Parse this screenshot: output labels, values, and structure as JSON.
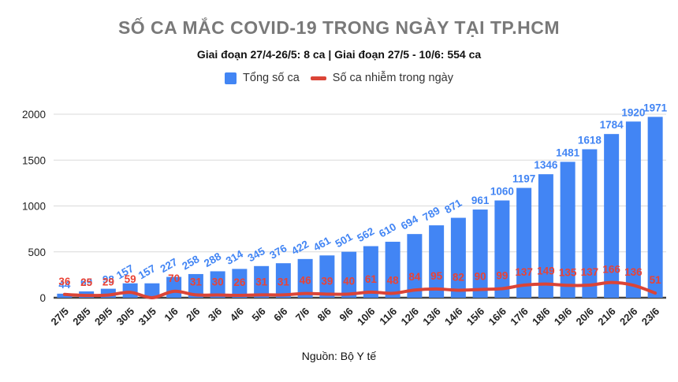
{
  "title": "SỐ CA MẮC COVID-19 TRONG NGÀY TẠI TP.HCM",
  "subtitle": "Giai đoạn 27/4-26/5: 8 ca  | Giai đoạn 27/5 - 10/6: 554 ca",
  "source": "Nguồn: Bộ Y tế",
  "legend": {
    "total": {
      "label": "Tổng số ca",
      "color": "#4285f4"
    },
    "daily": {
      "label": "Số ca nhiễm trong ngày",
      "color": "#db4437"
    }
  },
  "colors": {
    "bar": "#4285f4",
    "bar_label": "#4285f4",
    "line": "#db4437",
    "line_label": "#ea4335",
    "grid": "#d9d9d9",
    "axis": "#424242",
    "tick_text": "#222222",
    "title_text": "#797979"
  },
  "chart_data": {
    "type": "bar",
    "title": "SỐ CA MẮC COVID-19 TRONG NGÀY TẠI TP.HCM",
    "xlabel": "",
    "ylabel": "",
    "ylim": [
      0,
      2000
    ],
    "yticks": [
      0,
      500,
      1000,
      1500,
      2000
    ],
    "grid": true,
    "legend_position": "top",
    "categories": [
      "27/5",
      "28/5",
      "29/5",
      "30/5",
      "31/5",
      "1/6",
      "2/6",
      "3/6",
      "4/6",
      "5/6",
      "6/6",
      "7/6",
      "8/6",
      "9/6",
      "10/6",
      "11/6",
      "12/6",
      "13/6",
      "14/6",
      "15/6",
      "16/6",
      "17/6",
      "18/6",
      "19/6",
      "20/6",
      "21/6",
      "22/6",
      "23/6"
    ],
    "series": [
      {
        "name": "Tổng số ca",
        "type": "bar",
        "color": "#4285f4",
        "values": [
          44,
          69,
          98,
          157,
          157,
          227,
          258,
          288,
          314,
          345,
          376,
          422,
          461,
          501,
          562,
          610,
          694,
          789,
          871,
          961,
          1060,
          1197,
          1346,
          1481,
          1618,
          1784,
          1920,
          1971
        ],
        "labels": [
          "44",
          "69",
          "98",
          "157",
          "157",
          "227",
          "258",
          "288",
          "314",
          "345",
          "376",
          "422",
          "461",
          "501",
          "562",
          "610",
          "694",
          "789",
          "871",
          "961",
          "1060",
          "1197",
          "1346",
          "1481",
          "1618",
          "1784",
          "1920",
          "1971"
        ]
      },
      {
        "name": "Số ca nhiễm trong ngày",
        "type": "line",
        "color": "#db4437",
        "values": [
          36,
          25,
          29,
          59,
          0,
          70,
          31,
          30,
          26,
          31,
          31,
          46,
          39,
          40,
          61,
          48,
          84,
          95,
          82,
          90,
          99,
          137,
          149,
          135,
          137,
          166,
          136,
          51
        ],
        "labels": [
          "36",
          "25",
          "29",
          "59",
          "",
          "70",
          "31",
          "30",
          "26",
          "31",
          "31",
          "46",
          "39",
          "40",
          "61",
          "48",
          "84",
          "95",
          "82",
          "90",
          "99",
          "137",
          "149",
          "135",
          "137",
          "166",
          "136",
          "51"
        ]
      }
    ]
  }
}
